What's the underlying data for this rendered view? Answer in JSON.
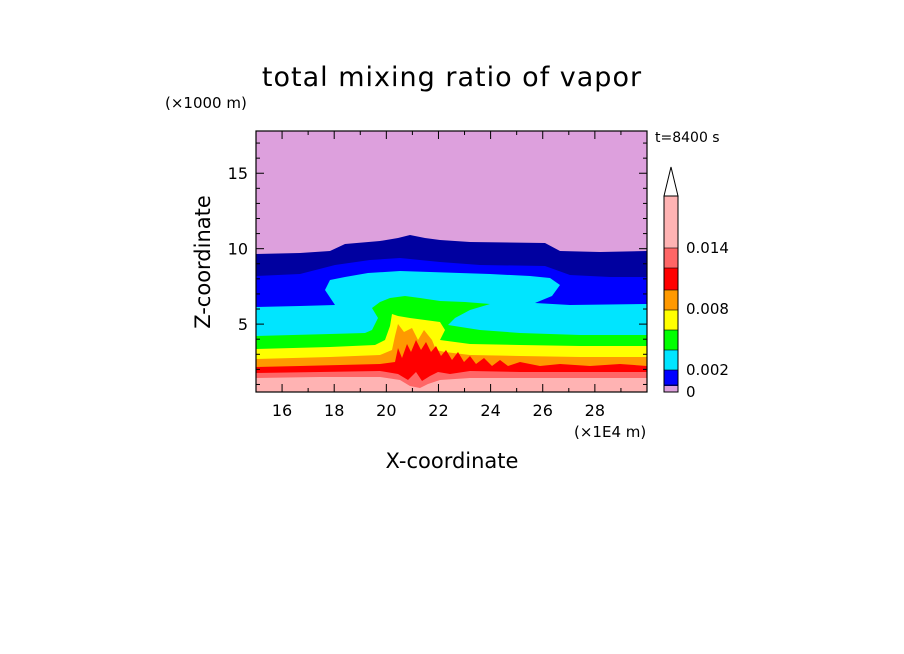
{
  "chart_data": {
    "type": "heatmap",
    "title": "total mixing ratio of vapor",
    "xlabel": "X-coordinate",
    "ylabel": "Z-coordinate",
    "x_unit": "(×1E4 m)",
    "y_unit": "(×1000 m)",
    "time_label": "t=8400 s",
    "xlim": [
      15,
      30
    ],
    "ylim": [
      0.5,
      17.8
    ],
    "x_ticks": [
      "16",
      "18",
      "20",
      "22",
      "24",
      "26",
      "28"
    ],
    "y_ticks": [
      "5",
      "10",
      "15"
    ],
    "colorbar": {
      "levels": [
        0,
        0.001,
        0.002,
        0.004,
        0.006,
        0.008,
        0.01,
        0.012,
        0.014,
        0.016
      ],
      "colors": [
        "#000080",
        "#0000ff",
        "#00e5ff",
        "#00ff00",
        "#ffff00",
        "#ff9900",
        "#ff0000",
        "#ff6666",
        "#ffb3b3"
      ],
      "background_color": "#dda0dd",
      "tick_labels": [
        "0",
        "0.002",
        "0.008",
        "0.014"
      ],
      "extend": "max"
    },
    "field_description_levels_km": [
      {
        "z_top": 17.8,
        "value_class": "<0.001",
        "color": "#dda0dd"
      },
      {
        "z_top": 9.6,
        "value_class": "0-0.001",
        "color": "#0000a0"
      },
      {
        "z_top": 8.0,
        "value_class": "0.001-0.002",
        "color": "#0000ff"
      },
      {
        "z_top": 5.6,
        "value_class": "0.002-0.004",
        "color": "#00e5ff"
      },
      {
        "z_top": 3.8,
        "value_class": "0.004-0.006",
        "color": "#00ff00"
      },
      {
        "z_top": 3.3,
        "value_class": "0.006-0.008",
        "color": "#ffff00"
      },
      {
        "z_top": 2.8,
        "value_class": "0.008-0.010",
        "color": "#ff9900"
      },
      {
        "z_top": 2.2,
        "value_class": "0.010-0.012",
        "color": "#ff0000"
      },
      {
        "z_top": 1.6,
        "value_class": "0.012-0.014",
        "color": "#ff6666"
      },
      {
        "z_top": 1.2,
        "value_class": ">0.014",
        "color": "#ffb3b3"
      }
    ]
  }
}
